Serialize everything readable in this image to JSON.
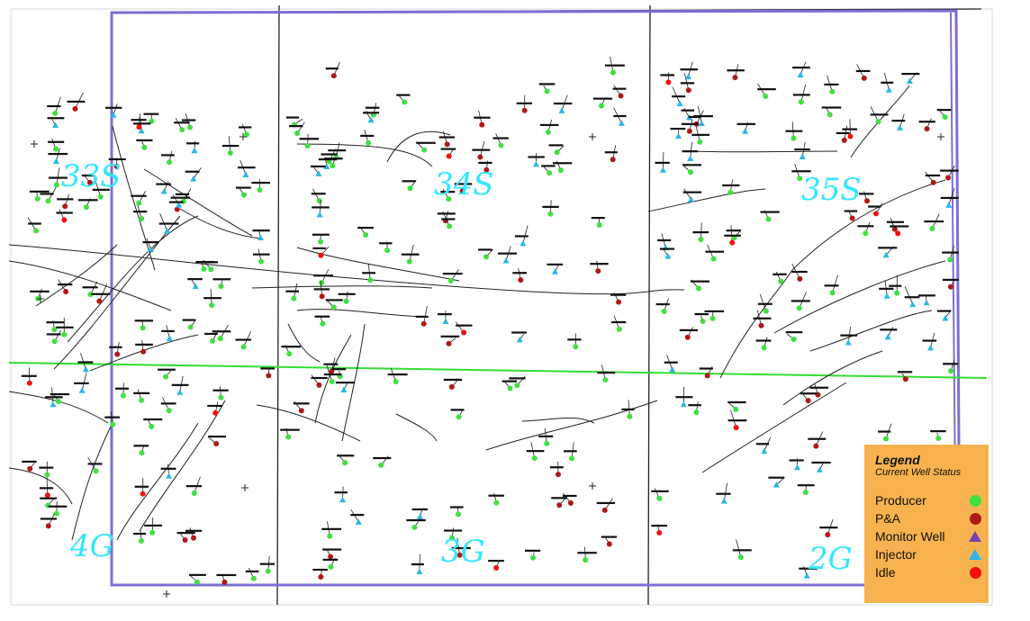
{
  "section_labels": [
    {
      "id": "33s",
      "text": "33S"
    },
    {
      "id": "34s",
      "text": "34S"
    },
    {
      "id": "35s",
      "text": "35S"
    },
    {
      "id": "4g",
      "text": "4G"
    },
    {
      "id": "3g",
      "text": "3G"
    },
    {
      "id": "2g",
      "text": "2G"
    }
  ],
  "legend": {
    "title": "Legend",
    "subtitle": "Current Well Status",
    "items": [
      {
        "label": "Producer",
        "symbol": "circle",
        "color": "#3fe03f"
      },
      {
        "label": "P&A",
        "symbol": "circle",
        "color": "#b01818"
      },
      {
        "label": "Monitor Well",
        "symbol": "triangle",
        "color": "#7b3fb0"
      },
      {
        "label": "Injector",
        "symbol": "triangle",
        "color": "#2ab6e8"
      },
      {
        "label": "Idle",
        "symbol": "circle",
        "color": "#f01010"
      }
    ]
  },
  "colors": {
    "unit_boundary": "#7b6fd6",
    "section_line": "#222222",
    "green_line": "#33dd33",
    "section_label": "#33e6ff",
    "legend_bg": "#f6b24e"
  }
}
